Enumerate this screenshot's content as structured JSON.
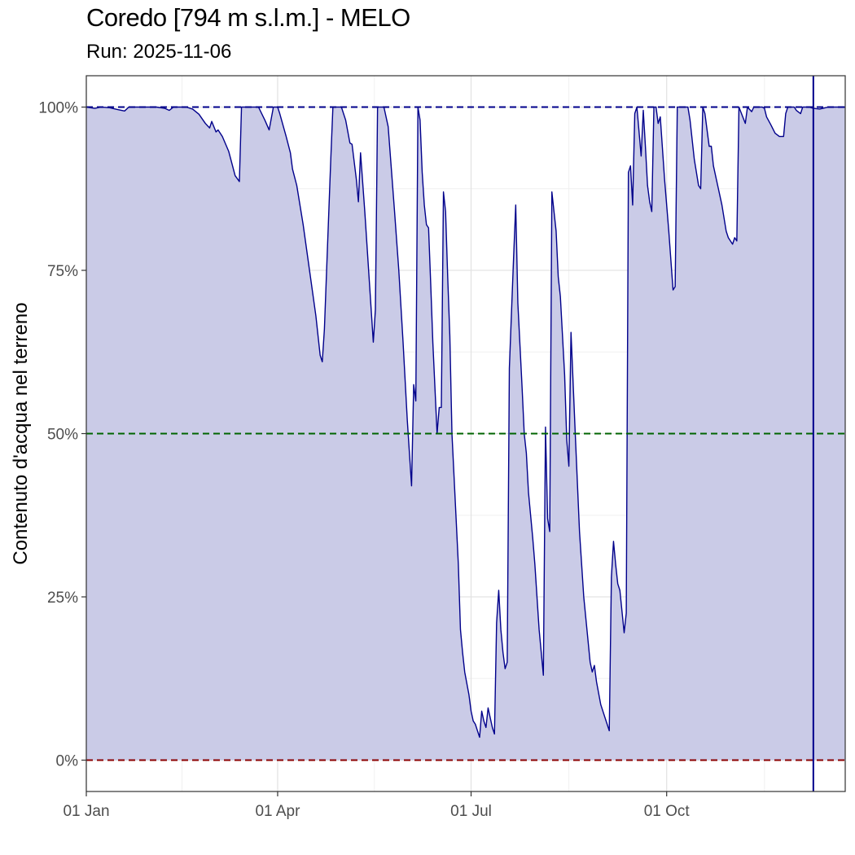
{
  "chart_data": {
    "type": "area",
    "title": "Coredo [794 m s.l.m.] - MELO",
    "subtitle": "Run: 2025-11-06",
    "ylabel": "Contenuto d'acqua nel terreno",
    "xlabel": "",
    "x_unit": "day_of_year",
    "xlim": [
      1,
      358
    ],
    "ylim": [
      -4.8,
      104.8
    ],
    "x_ticks": [
      {
        "label": "01 Jan",
        "day": 1
      },
      {
        "label": "01 Apr",
        "day": 91
      },
      {
        "label": "01 Jul",
        "day": 182
      },
      {
        "label": "01 Oct",
        "day": 274
      }
    ],
    "y_ticks": [
      {
        "label": "0%",
        "value": 0
      },
      {
        "label": "25%",
        "value": 25
      },
      {
        "label": "50%",
        "value": 50
      },
      {
        "label": "75%",
        "value": 75
      },
      {
        "label": "100%",
        "value": 100
      }
    ],
    "grid": true,
    "series": [
      {
        "color": "#00008B",
        "fill": "#CACBE7",
        "points": [
          [
            1,
            100
          ],
          [
            5,
            99.8
          ],
          [
            8,
            100
          ],
          [
            12,
            99.9
          ],
          [
            16,
            99.6
          ],
          [
            19,
            99.4
          ],
          [
            21,
            100
          ],
          [
            25,
            100
          ],
          [
            30,
            100
          ],
          [
            34,
            100
          ],
          [
            38,
            99.8
          ],
          [
            40,
            99.5
          ],
          [
            42,
            100
          ],
          [
            48,
            100
          ],
          [
            51,
            99.7
          ],
          [
            54,
            98.9
          ],
          [
            57,
            97.5
          ],
          [
            59,
            96.8
          ],
          [
            60,
            97.8
          ],
          [
            62,
            96.2
          ],
          [
            63,
            96.5
          ],
          [
            65,
            95.5
          ],
          [
            68,
            93.2
          ],
          [
            71,
            89.5
          ],
          [
            73,
            88.6
          ],
          [
            74,
            100
          ],
          [
            82,
            100
          ],
          [
            85,
            98
          ],
          [
            87,
            96.5
          ],
          [
            89,
            100
          ],
          [
            91,
            100
          ],
          [
            92,
            99
          ],
          [
            95,
            95.5
          ],
          [
            97,
            93
          ],
          [
            98,
            90.5
          ],
          [
            100,
            88
          ],
          [
            103,
            82
          ],
          [
            106,
            75
          ],
          [
            109,
            68
          ],
          [
            111,
            62
          ],
          [
            112,
            61
          ],
          [
            113,
            66
          ],
          [
            116,
            92
          ],
          [
            117,
            100
          ],
          [
            121,
            100
          ],
          [
            123,
            98
          ],
          [
            125,
            94.5
          ],
          [
            126,
            94.3
          ],
          [
            128,
            89
          ],
          [
            129,
            85.5
          ],
          [
            130,
            93
          ],
          [
            132,
            84
          ],
          [
            133,
            79
          ],
          [
            135,
            69
          ],
          [
            136,
            64
          ],
          [
            137,
            69
          ],
          [
            138,
            100
          ],
          [
            141,
            100
          ],
          [
            143,
            97
          ],
          [
            146,
            84
          ],
          [
            148,
            75
          ],
          [
            150,
            64
          ],
          [
            152,
            52
          ],
          [
            154,
            42
          ],
          [
            155,
            57.5
          ],
          [
            156,
            55
          ],
          [
            157,
            100
          ],
          [
            158,
            98
          ],
          [
            159,
            90
          ],
          [
            160,
            85
          ],
          [
            161,
            82
          ],
          [
            162,
            81.5
          ],
          [
            163,
            73
          ],
          [
            164,
            64
          ],
          [
            166,
            50
          ],
          [
            167,
            54
          ],
          [
            168,
            54
          ],
          [
            169,
            87
          ],
          [
            170,
            84
          ],
          [
            171,
            74
          ],
          [
            172,
            65
          ],
          [
            173,
            50
          ],
          [
            176,
            30
          ],
          [
            177,
            20
          ],
          [
            178,
            16.5
          ],
          [
            179,
            13.5
          ],
          [
            181,
            10
          ],
          [
            182,
            7.5
          ],
          [
            183,
            6
          ],
          [
            184,
            5.5
          ],
          [
            186,
            3.5
          ],
          [
            187,
            7.5
          ],
          [
            188,
            6
          ],
          [
            189,
            5
          ],
          [
            190,
            8
          ],
          [
            191,
            6.5
          ],
          [
            192,
            5
          ],
          [
            193,
            4
          ],
          [
            194,
            21
          ],
          [
            195,
            26
          ],
          [
            196,
            20
          ],
          [
            197,
            16.5
          ],
          [
            198,
            14
          ],
          [
            199,
            15
          ],
          [
            200,
            60
          ],
          [
            202,
            77
          ],
          [
            203,
            85
          ],
          [
            204,
            70
          ],
          [
            206,
            57
          ],
          [
            207,
            50
          ],
          [
            208,
            47
          ],
          [
            209,
            41
          ],
          [
            211,
            34
          ],
          [
            212,
            30
          ],
          [
            214,
            20
          ],
          [
            216,
            13
          ],
          [
            217,
            51
          ],
          [
            218,
            37
          ],
          [
            219,
            35
          ],
          [
            220,
            87
          ],
          [
            221,
            84
          ],
          [
            222,
            81
          ],
          [
            223,
            74
          ],
          [
            224,
            71
          ],
          [
            226,
            59
          ],
          [
            227,
            49
          ],
          [
            228,
            45
          ],
          [
            229,
            65.5
          ],
          [
            231,
            50
          ],
          [
            233,
            35
          ],
          [
            235,
            25
          ],
          [
            238,
            15
          ],
          [
            239,
            13.5
          ],
          [
            240,
            14.5
          ],
          [
            241,
            12
          ],
          [
            243,
            8.5
          ],
          [
            245,
            6.5
          ],
          [
            247,
            4.5
          ],
          [
            248,
            28
          ],
          [
            249,
            33.5
          ],
          [
            250,
            30
          ],
          [
            251,
            27
          ],
          [
            252,
            26
          ],
          [
            254,
            19.5
          ],
          [
            255,
            22.5
          ],
          [
            256,
            90
          ],
          [
            257,
            91
          ],
          [
            258,
            85
          ],
          [
            259,
            99
          ],
          [
            260,
            100
          ],
          [
            262,
            92.5
          ],
          [
            263,
            99.5
          ],
          [
            264,
            94
          ],
          [
            265,
            88
          ],
          [
            266,
            85.5
          ],
          [
            267,
            84
          ],
          [
            268,
            100
          ],
          [
            269,
            100
          ],
          [
            270,
            97.5
          ],
          [
            271,
            98.5
          ],
          [
            273,
            89
          ],
          [
            275,
            81
          ],
          [
            277,
            72
          ],
          [
            278,
            72.5
          ],
          [
            279,
            100
          ],
          [
            284,
            100
          ],
          [
            285,
            98
          ],
          [
            287,
            92
          ],
          [
            289,
            88
          ],
          [
            290,
            87.5
          ],
          [
            291,
            100
          ],
          [
            292,
            99
          ],
          [
            294,
            94
          ],
          [
            295,
            94
          ],
          [
            296,
            91
          ],
          [
            298,
            88
          ],
          [
            300,
            85
          ],
          [
            302,
            81
          ],
          [
            303,
            80
          ],
          [
            305,
            79
          ],
          [
            306,
            80
          ],
          [
            307,
            79.5
          ],
          [
            308,
            100
          ],
          [
            311,
            97.5
          ],
          [
            312,
            100
          ],
          [
            314,
            99.3
          ],
          [
            315,
            100
          ],
          [
            319,
            100
          ],
          [
            320,
            99.8
          ],
          [
            321,
            98.5
          ],
          [
            323,
            97.3
          ],
          [
            325,
            96
          ],
          [
            327,
            95.5
          ],
          [
            329,
            95.5
          ],
          [
            330,
            99
          ],
          [
            331,
            100
          ],
          [
            334,
            100
          ],
          [
            335,
            99.5
          ],
          [
            337,
            99
          ],
          [
            338,
            100
          ],
          [
            341,
            100
          ],
          [
            343,
            99.8
          ],
          [
            346,
            99.7
          ],
          [
            350,
            100
          ],
          [
            355,
            100
          ],
          [
            358,
            100
          ]
        ]
      }
    ],
    "reference_lines": [
      {
        "value": 100,
        "color": "#00008B"
      },
      {
        "value": 50,
        "color": "#006400"
      },
      {
        "value": 0,
        "color": "#8B0000"
      }
    ],
    "vertical_marker": {
      "day": 343,
      "color": "#00008B"
    }
  }
}
